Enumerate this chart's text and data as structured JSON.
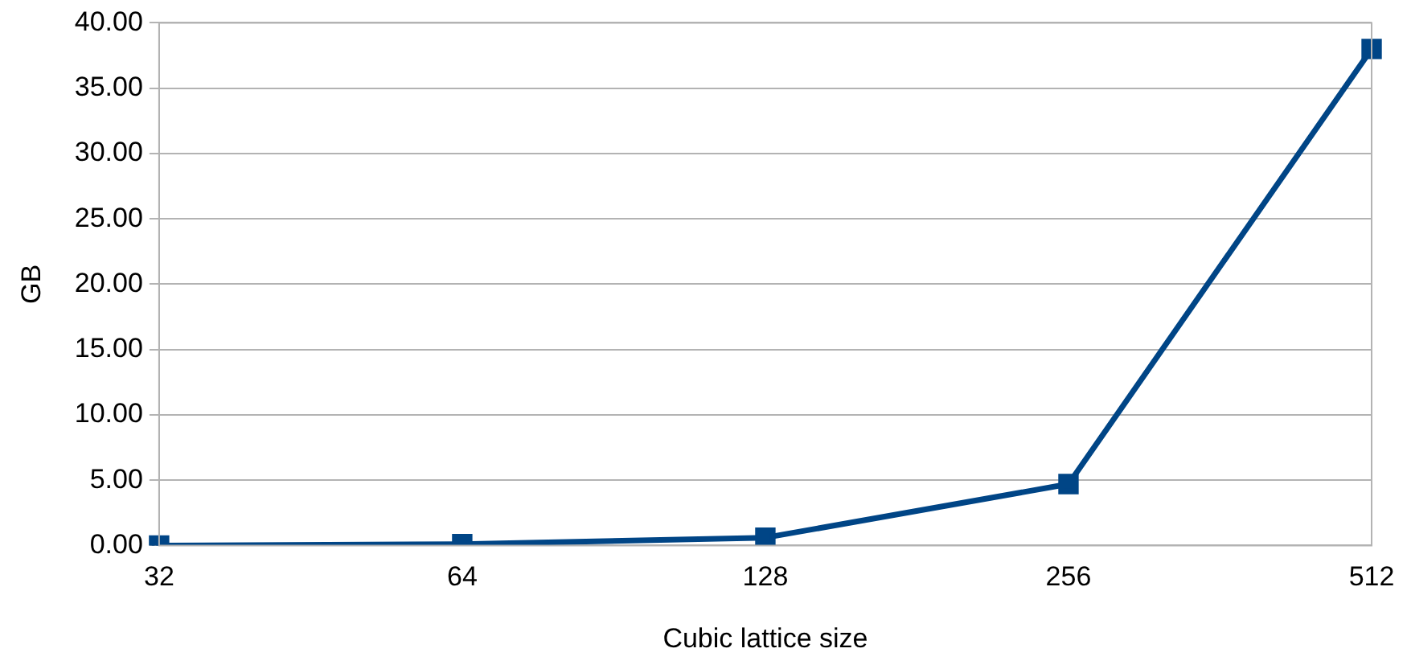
{
  "chart_data": {
    "type": "line",
    "xlabel": "Cubic lattice size",
    "ylabel": "GB",
    "categories": [
      "32",
      "64",
      "128",
      "256",
      "512"
    ],
    "series": [
      {
        "color": "#004586",
        "values": [
          0.0,
          0.1,
          0.6,
          4.7,
          38.0
        ]
      }
    ],
    "ylim": [
      0,
      40
    ],
    "yticks": [
      {
        "value": 0,
        "label": "0.00"
      },
      {
        "value": 5,
        "label": "5.00"
      },
      {
        "value": 10,
        "label": "10.00"
      },
      {
        "value": 15,
        "label": "15.00"
      },
      {
        "value": 20,
        "label": "20.00"
      },
      {
        "value": 25,
        "label": "25.00"
      },
      {
        "value": 30,
        "label": "30.00"
      },
      {
        "value": 35,
        "label": "35.00"
      },
      {
        "value": 40,
        "label": "40.00"
      }
    ],
    "grid": "y",
    "legend": false,
    "marker": "square",
    "line_style": "solid"
  }
}
